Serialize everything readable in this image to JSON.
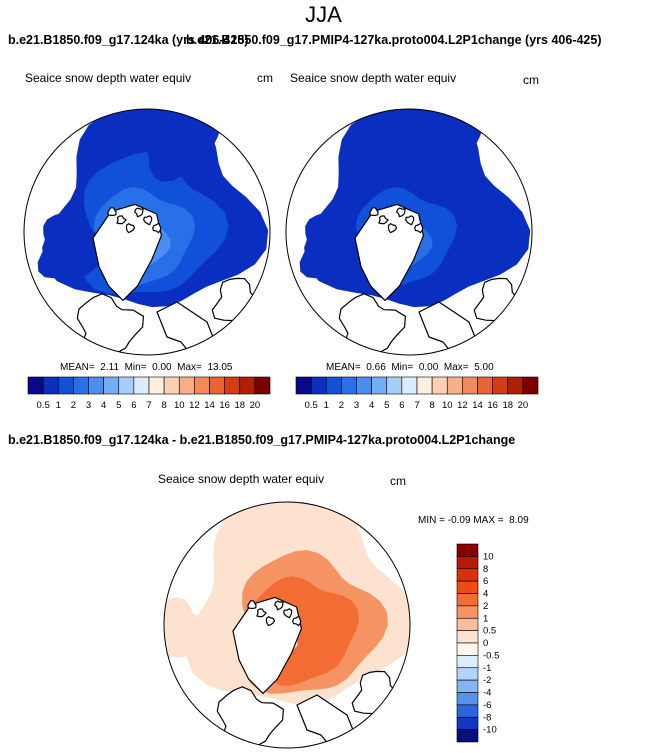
{
  "page_title": "JJA",
  "header": {
    "case_left": "b.e21.B1850.f09_g17.124ka (yrs 406-425)",
    "case_right": "b.e21.B1850.f09_g17.PMIP4-127ka.proto004.L2P1change (yrs 406-425)",
    "diff_title": "b.e21.B1850.f09_g17.124ka - b.e21.B1850.f09_g17.PMIP4-127ka.proto004.L2P1change"
  },
  "chart_data": [
    {
      "type": "heatmap",
      "projection": "north polar stereographic",
      "variable": "Seaice snow depth water equiv",
      "units": "cm",
      "stats": {
        "mean_label": "MEAN=",
        "mean": "2.11",
        "min_label": "Min=",
        "min": "0.00",
        "max_label": "Max=",
        "max": "13.05"
      },
      "colorbar_levels": [
        "0.5",
        "1",
        "2",
        "3",
        "4",
        "5",
        "6",
        "7",
        "8",
        "10",
        "12",
        "14",
        "16",
        "18",
        "20"
      ],
      "colors": [
        "#08088a",
        "#0a2ec0",
        "#1150d8",
        "#2870e8",
        "#4a8ef0",
        "#76aef4",
        "#a8cef8",
        "#dcecfc",
        "#fdeede",
        "#fbd0b4",
        "#f8ae88",
        "#f28a5c",
        "#e86434",
        "#d43c14",
        "#b01e08",
        "#7a0000"
      ]
    },
    {
      "type": "heatmap",
      "projection": "north polar stereographic",
      "variable": "Seaice snow depth water equiv",
      "units": "cm",
      "stats": {
        "mean_label": "MEAN=",
        "mean": "0.66",
        "min_label": "Min=",
        "min": "0.00",
        "max_label": "Max=",
        "max": "5.00"
      },
      "colorbar_levels": [
        "0.5",
        "1",
        "2",
        "3",
        "4",
        "5",
        "6",
        "7",
        "8",
        "10",
        "12",
        "14",
        "16",
        "18",
        "20"
      ],
      "colors": [
        "#08088a",
        "#0a2ec0",
        "#1150d8",
        "#2870e8",
        "#4a8ef0",
        "#76aef4",
        "#a8cef8",
        "#dcecfc",
        "#fdeede",
        "#fbd0b4",
        "#f8ae88",
        "#f28a5c",
        "#e86434",
        "#d43c14",
        "#b01e08",
        "#7a0000"
      ]
    },
    {
      "type": "heatmap",
      "projection": "north polar stereographic",
      "variable": "Seaice snow depth water equiv",
      "units": "cm",
      "stats": {
        "min_label": "MIN =",
        "min": "-0.09",
        "max_label": "MAX =",
        "max": "8.09"
      },
      "colorbar_levels": [
        "10",
        "8",
        "6",
        "4",
        "2",
        "1",
        "0.5",
        "0",
        "-0.5",
        "-1",
        "-2",
        "-4",
        "-6",
        "-8",
        "-10"
      ],
      "colors": [
        "#8a0000",
        "#b81a08",
        "#d8300a",
        "#ee4c10",
        "#f36c34",
        "#f59462",
        "#f9bc9c",
        "#fde2d0",
        "#fff6ee",
        "#dceefc",
        "#b0d4fa",
        "#84b4f2",
        "#5890ea",
        "#2e64dc",
        "#1038bc",
        "#06107a"
      ]
    }
  ]
}
